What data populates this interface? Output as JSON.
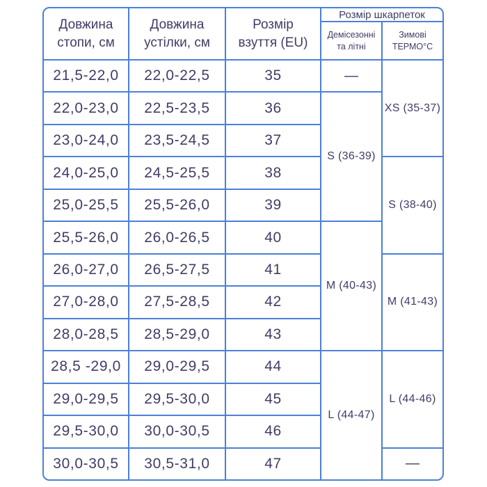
{
  "colors": {
    "border_blue": "#4a80d8",
    "text_navy": "#403d66",
    "background": "#ffffff"
  },
  "table": {
    "header": {
      "foot": "Довжина стопи, см",
      "insole": "Довжина устілки, см",
      "shoe_eu": "Розмір взуття (EU)",
      "socks": "Розмір шкарпеток",
      "demi": "Демісезонні та літні",
      "thermo": "Зимові ТЕРМО°С"
    },
    "rows": [
      {
        "foot": "21,5-22,0",
        "insole": "22,0-22,5",
        "eu": "35"
      },
      {
        "foot": "22,0-23,0",
        "insole": "22,5-23,5",
        "eu": "36"
      },
      {
        "foot": "23,0-24,0",
        "insole": "23,5-24,5",
        "eu": "37"
      },
      {
        "foot": "24,0-25,0",
        "insole": "24,5-25,5",
        "eu": "38"
      },
      {
        "foot": "25,0-25,5",
        "insole": "25,5-26,0",
        "eu": "39"
      },
      {
        "foot": "25,5-26,0",
        "insole": "26,0-26,5",
        "eu": "40"
      },
      {
        "foot": "26,0-27,0",
        "insole": "26,5-27,5",
        "eu": "41"
      },
      {
        "foot": "27,0-28,0",
        "insole": "27,5-28,5",
        "eu": "42"
      },
      {
        "foot": "28,0-28,5",
        "insole": "28,5-29,0",
        "eu": "43"
      },
      {
        "foot": "28,5 -29,0",
        "insole": "29,0-29,5",
        "eu": "44"
      },
      {
        "foot": "29,0-29,5",
        "insole": "29,5-30,0",
        "eu": "45"
      },
      {
        "foot": "29,5-30,0",
        "insole": "30,0-30,5",
        "eu": "46"
      },
      {
        "foot": "30,0-30,5",
        "insole": "30,5-31,0",
        "eu": "47"
      }
    ],
    "demi_spans": [
      {
        "label": "—",
        "rows": 1
      },
      {
        "label": "S (36-39)",
        "rows": 4
      },
      {
        "label": "M (40-43)",
        "rows": 4
      },
      {
        "label": "L (44-47)",
        "rows": 4
      }
    ],
    "thermo_spans": [
      {
        "label": "XS (35-37)",
        "rows": 3
      },
      {
        "label": "S (38-40)",
        "rows": 3
      },
      {
        "label": "M (41-43)",
        "rows": 3
      },
      {
        "label": "L (44-46)",
        "rows": 3
      },
      {
        "label": "—",
        "rows": 1
      }
    ]
  },
  "chart_data": {
    "type": "table",
    "title": "Розмір шкарпеток",
    "columns": [
      "Довжина стопи, см",
      "Довжина устілки, см",
      "Розмір взуття (EU)",
      "Розмір шкарпеток — Демісезонні та літні",
      "Розмір шкарпеток — Зимові ТЕРМО°С"
    ],
    "rows": [
      [
        "21,5-22,0",
        "22,0-22,5",
        "35",
        "—",
        "XS (35-37)"
      ],
      [
        "22,0-23,0",
        "22,5-23,5",
        "36",
        "S (36-39)",
        "XS (35-37)"
      ],
      [
        "23,0-24,0",
        "23,5-24,5",
        "37",
        "S (36-39)",
        "XS (35-37)"
      ],
      [
        "24,0-25,0",
        "24,5-25,5",
        "38",
        "S (36-39)",
        "S (38-40)"
      ],
      [
        "25,0-25,5",
        "25,5-26,0",
        "39",
        "S (36-39)",
        "S (38-40)"
      ],
      [
        "25,5-26,0",
        "26,0-26,5",
        "40",
        "M (40-43)",
        "S (38-40)"
      ],
      [
        "26,0-27,0",
        "26,5-27,5",
        "41",
        "M (40-43)",
        "M (41-43)"
      ],
      [
        "27,0-28,0",
        "27,5-28,5",
        "42",
        "M (40-43)",
        "M (41-43)"
      ],
      [
        "28,0-28,5",
        "28,5-29,0",
        "43",
        "M (40-43)",
        "M (41-43)"
      ],
      [
        "28,5 -29,0",
        "29,0-29,5",
        "44",
        "L (44-47)",
        "L (44-46)"
      ],
      [
        "29,0-29,5",
        "29,5-30,0",
        "45",
        "L (44-47)",
        "L (44-46)"
      ],
      [
        "29,5-30,0",
        "30,0-30,5",
        "46",
        "L (44-47)",
        "L (44-46)"
      ],
      [
        "30,0-30,5",
        "30,5-31,0",
        "47",
        "L (44-47)",
        "—"
      ]
    ]
  }
}
